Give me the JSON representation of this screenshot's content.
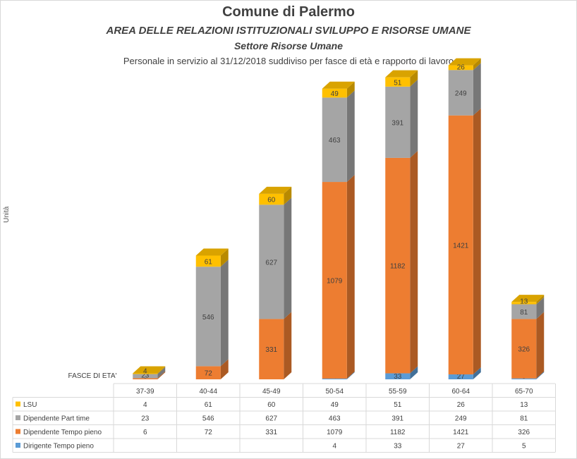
{
  "titles": {
    "main": "Comune di Palermo",
    "area": "AREA DELLE RELAZIONI ISTITUZIONALI SVILUPPO E RISORSE UMANE",
    "sector": "Settore Risorse Umane",
    "subtitle": "Personale in servizio al 31/12/2018 suddiviso per fasce di età e rapporto  di lavoro"
  },
  "axis": {
    "ylabel": "Unità",
    "corner_label": "FASCE  DI ETA'"
  },
  "chart_data": {
    "type": "bar",
    "stacked": true,
    "style": "3d",
    "title": "Personale in servizio al 31/12/2018 suddiviso per fasce di età e rapporto  di lavoro",
    "ylabel": "Unità",
    "xlabel": "FASCE  DI ETA'",
    "categories": [
      "37-39",
      "40-44",
      "45-49",
      "50-54",
      "55-59",
      "60-64",
      "65-70"
    ],
    "series": [
      {
        "name": "Dirigente Tempo pieno",
        "color": "#5b9bd5",
        "values": [
          null,
          null,
          null,
          4,
          33,
          27,
          5
        ]
      },
      {
        "name": "Dipendente Tempo pieno",
        "color": "#ed7d31",
        "values": [
          6,
          72,
          331,
          1079,
          1182,
          1421,
          326
        ]
      },
      {
        "name": "Dipendente Part time",
        "color": "#a5a5a5",
        "values": [
          23,
          546,
          627,
          463,
          391,
          249,
          81
        ]
      },
      {
        "name": "LSU",
        "color": "#ffc000",
        "values": [
          4,
          61,
          60,
          49,
          51,
          26,
          13
        ]
      }
    ],
    "data_table": true,
    "legend": "data table keys",
    "grid": false
  }
}
